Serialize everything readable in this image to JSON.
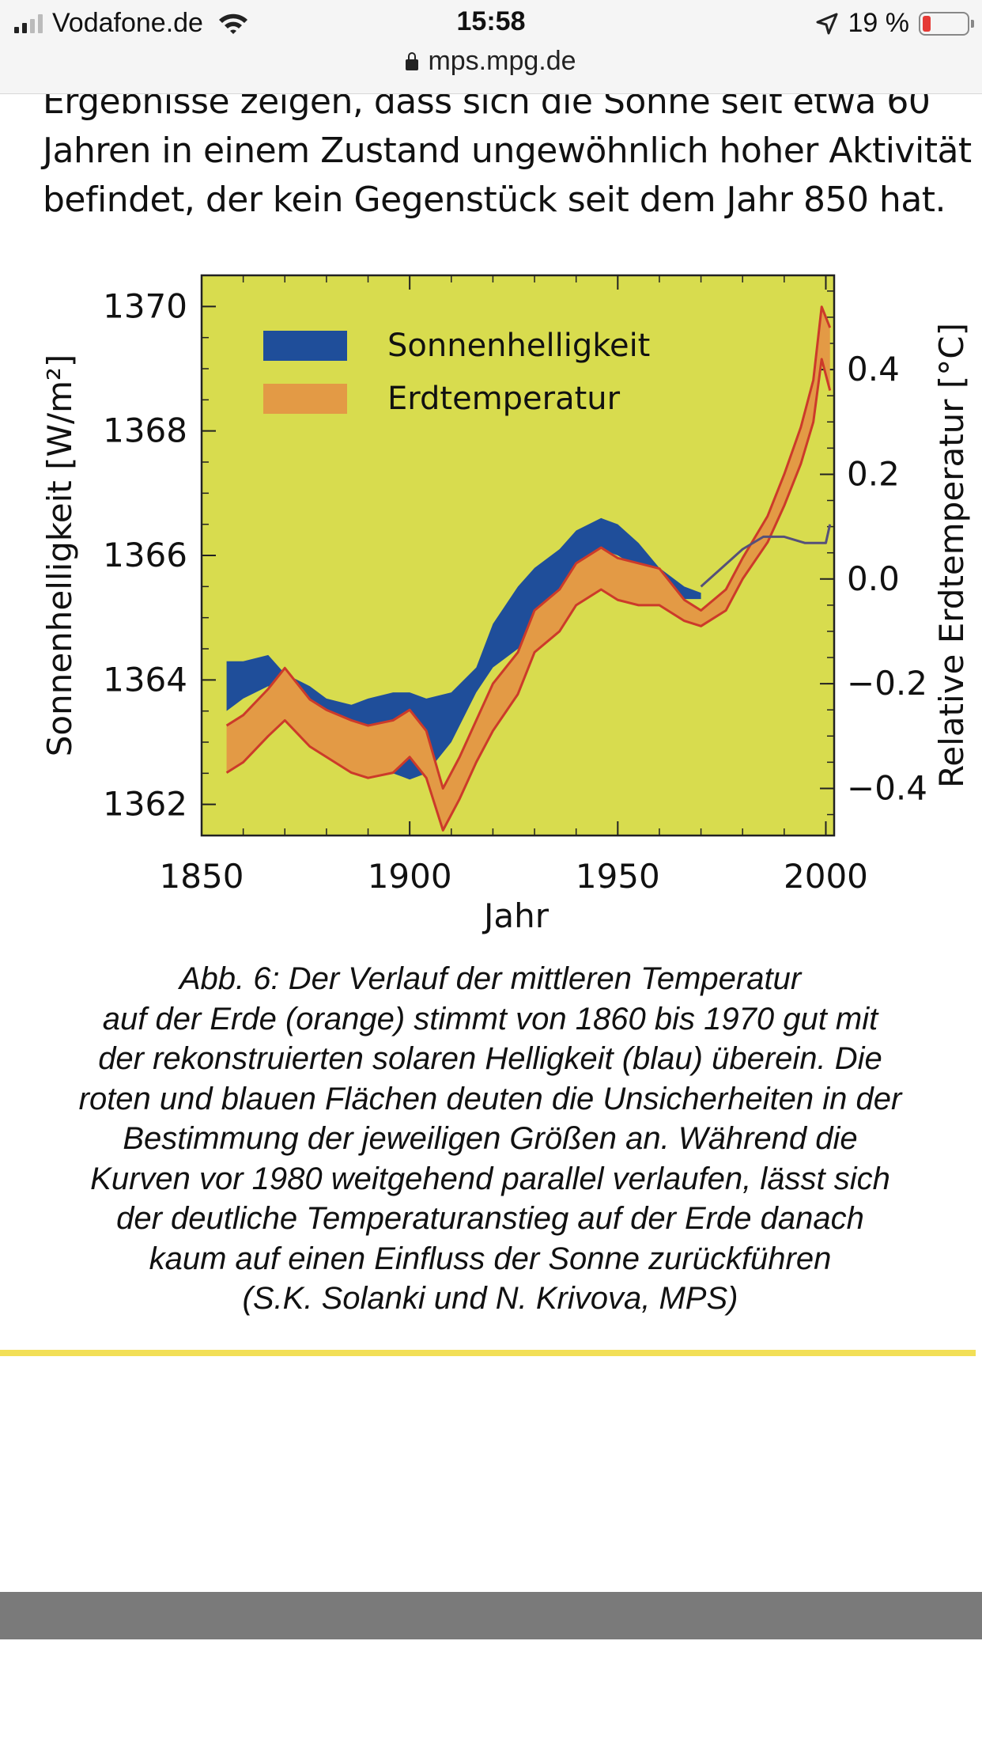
{
  "status_bar": {
    "carrier": "Vodafone.de",
    "time": "15:58",
    "battery": "19 %",
    "battery_level": 0.19,
    "url": "mps.mpg.de"
  },
  "article": {
    "lines": [
      "Ergebnisse zeigen, dass sich die Sonne seit etwa 60",
      "Jahren in einem Zustand ungewöhnlich hoher Aktivität",
      "befindet, der kein Gegenstück seit dem Jahr 850 hat."
    ]
  },
  "chart_data": {
    "type": "area",
    "xlabel": "Jahr",
    "ylabel_left": "Sonnenhelligkeit [W/m²]",
    "ylabel_right": "Relative Erdtemperatur [°C]",
    "xlim": [
      1850,
      2002
    ],
    "ylim_left": [
      1361.5,
      1370.5
    ],
    "ylim_right": [
      -0.49,
      0.58
    ],
    "x_ticks": [
      "1850",
      "1900",
      "1950",
      "2000"
    ],
    "y_ticks_left": [
      "1362",
      "1364",
      "1366",
      "1368",
      "1370"
    ],
    "y_ticks_right": [
      "−0.4",
      "−0.2",
      "0.0",
      "0.2",
      "0.4"
    ],
    "legend_position": "top-left",
    "plot_background": "#d8dc4e",
    "series": [
      {
        "name": "Sonnenhelligkeit",
        "axis": "left",
        "color": "#1f4e9a",
        "x": [
          1856,
          1860,
          1866,
          1870,
          1876,
          1880,
          1886,
          1890,
          1896,
          1900,
          1904,
          1910,
          1916,
          1920,
          1926,
          1930,
          1936,
          1940,
          1946,
          1950,
          1955,
          1960,
          1966,
          1970
        ],
        "upper": [
          1364.3,
          1364.3,
          1364.4,
          1364.1,
          1363.9,
          1363.7,
          1363.6,
          1363.7,
          1363.8,
          1363.8,
          1363.7,
          1363.8,
          1364.2,
          1364.9,
          1365.5,
          1365.8,
          1366.1,
          1366.4,
          1366.6,
          1366.5,
          1366.2,
          1365.8,
          1365.5,
          1365.4
        ],
        "lower": [
          1363.5,
          1363.7,
          1363.9,
          1363.6,
          1363.4,
          1363.2,
          1362.9,
          1362.7,
          1362.5,
          1362.4,
          1362.5,
          1363.0,
          1363.8,
          1364.2,
          1364.5,
          1364.8,
          1365.3,
          1365.8,
          1366.1,
          1366.0,
          1365.8,
          1365.5,
          1365.3,
          1365.3
        ]
      },
      {
        "name": "Erdtemperatur",
        "axis": "right",
        "color": "#e39a45",
        "line_color": "#cc3a2a",
        "x": [
          1856,
          1860,
          1866,
          1870,
          1876,
          1880,
          1886,
          1890,
          1896,
          1900,
          1904,
          1908,
          1912,
          1916,
          1920,
          1926,
          1930,
          1936,
          1940,
          1946,
          1950,
          1955,
          1960,
          1966,
          1970,
          1976,
          1980,
          1986,
          1990,
          1994,
          1997,
          1999,
          2001
        ],
        "upper": [
          -0.28,
          -0.26,
          -0.21,
          -0.17,
          -0.23,
          -0.25,
          -0.27,
          -0.28,
          -0.27,
          -0.25,
          -0.29,
          -0.4,
          -0.34,
          -0.27,
          -0.2,
          -0.14,
          -0.06,
          -0.02,
          0.03,
          0.06,
          0.04,
          0.03,
          0.02,
          -0.04,
          -0.06,
          -0.02,
          0.04,
          0.12,
          0.2,
          0.29,
          0.38,
          0.52,
          0.48
        ],
        "lower": [
          -0.37,
          -0.35,
          -0.3,
          -0.27,
          -0.32,
          -0.34,
          -0.37,
          -0.38,
          -0.37,
          -0.34,
          -0.38,
          -0.48,
          -0.42,
          -0.35,
          -0.29,
          -0.22,
          -0.14,
          -0.1,
          -0.05,
          -0.02,
          -0.04,
          -0.05,
          -0.05,
          -0.08,
          -0.09,
          -0.06,
          0.0,
          0.07,
          0.14,
          0.22,
          0.3,
          0.42,
          0.36
        ]
      },
      {
        "name": "",
        "axis": "left",
        "color": "#55507a",
        "x": [
          1970,
          1975,
          1980,
          1985,
          1990,
          1995,
          2000,
          2001
        ],
        "values": [
          1365.5,
          1365.8,
          1366.1,
          1366.3,
          1366.3,
          1366.2,
          1366.2,
          1366.5
        ]
      }
    ]
  },
  "caption": {
    "lines": [
      "Abb. 6: Der Verlauf der mittleren Temperatur",
      "auf der Erde (orange) stimmt von 1860 bis 1970 gut mit",
      "der rekonstruierten solaren Helligkeit (blau) überein. Die",
      "roten und blauen Flächen deuten die Unsicherheiten in der",
      "Bestimmung der jeweiligen Größen an. Während die",
      "Kurven vor 1980 weitgehend parallel verlaufen, lässt sich",
      "der deutliche Temperaturanstieg auf der Erde danach",
      "kaum auf einen Einfluss der Sonne zurückführen",
      "(S.K. Solanki und N. Krivova, MPS)"
    ]
  }
}
